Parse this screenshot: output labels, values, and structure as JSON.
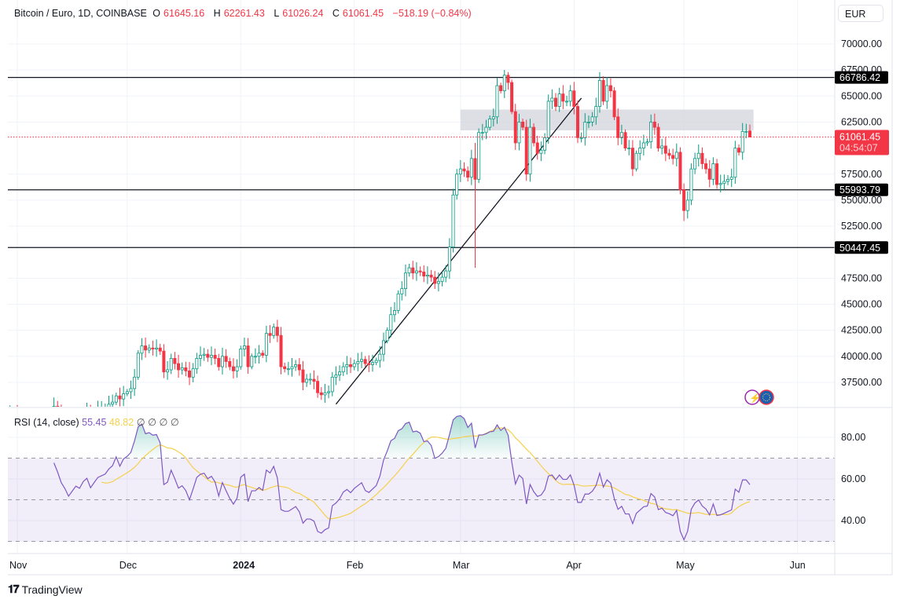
{
  "header": {
    "symbol": "Bitcoin / Euro, 1D, COINBASE",
    "open_label": "O",
    "open": "61645.16",
    "high_label": "H",
    "high": "62261.43",
    "low_label": "L",
    "low": "61026.24",
    "close_label": "C",
    "close": "61061.45",
    "change": "−518.19 (−0.84%)"
  },
  "currency_button": "EUR",
  "rsi_legend": {
    "name": "RSI (14, close)",
    "value": "55.45",
    "ma_value": "48.82",
    "extras": [
      "∅",
      "∅",
      "∅",
      "∅"
    ]
  },
  "price_labels": {
    "last": "61061.45",
    "countdown": "04:54:07"
  },
  "branding": "TradingView",
  "colors": {
    "up": "#089981",
    "down": "#f23645",
    "rsi": "#7e57c2",
    "rsi_ma": "#f5d04c",
    "zone": "#d1d4dc"
  },
  "icons": [
    "lightning-icon",
    "eu-flag-icon"
  ],
  "chart_data": [
    {
      "type": "candlestick",
      "title": "Bitcoin / Euro, 1D, COINBASE",
      "ylim": [
        35400,
        71000
      ],
      "y_ticks": [
        "70000.00",
        "67500.00",
        "65000.00",
        "62500.00",
        "57500.00",
        "55000.00",
        "52500.00",
        "47500.00",
        "45000.00",
        "42500.00",
        "40000.00",
        "37500.00"
      ],
      "x_ticks": [
        {
          "date": "2023-11-01",
          "label": "Nov"
        },
        {
          "date": "2023-12-01",
          "label": "Dec"
        },
        {
          "date": "2024-01-01",
          "label": "2024",
          "bold": true
        },
        {
          "date": "2024-02-01",
          "label": "Feb"
        },
        {
          "date": "2024-03-01",
          "label": "Mar"
        },
        {
          "date": "2024-04-01",
          "label": "Apr"
        },
        {
          "date": "2024-05-01",
          "label": "May"
        },
        {
          "date": "2024-06-01",
          "label": "Jun"
        }
      ],
      "closes_by_month": {
        "2023-10": {
          "first_day": 28,
          "values": [
            33000,
            33500,
            34500,
            34600
          ]
        },
        "2023-11": {
          "first_day": 1,
          "values": [
            33800,
            34200,
            34000,
            33800,
            34100,
            34300,
            34000,
            33500,
            33800,
            34500,
            35200,
            34800,
            34300,
            34000,
            33600,
            33900,
            34200,
            34100,
            34500,
            34700,
            34300,
            34600,
            34900,
            35000,
            35100,
            35400,
            35600,
            36200,
            35900,
            36400
          ]
        },
        "2023-12": {
          "first_day": 1,
          "values": [
            36600,
            36900,
            38000,
            40300,
            41000,
            40600,
            40800,
            40700,
            40800,
            40500,
            38500,
            38700,
            39800,
            39300,
            38700,
            38900,
            38600,
            38000,
            38800,
            39800,
            40100,
            40200,
            39900,
            40100,
            39800,
            39000,
            40000,
            39500,
            39000,
            38600,
            39000
          ]
        },
        "2024-01": {
          "first_day": 1,
          "values": [
            40700,
            41000,
            39000,
            40000,
            40000,
            40300,
            40100,
            42200,
            42000,
            42800,
            42000,
            39000,
            38800,
            38800,
            39000,
            39200,
            38700,
            37500,
            37800,
            37800,
            37600,
            36500,
            36300,
            36500,
            36600,
            38000,
            38200,
            38500,
            39000,
            39200,
            39000
          ]
        },
        "2024-02": {
          "first_day": 1,
          "values": [
            39300,
            39500,
            39700,
            39300,
            39200,
            39400,
            39600,
            40200,
            41500,
            42500,
            44000,
            44400,
            46000,
            46500,
            48000,
            48500,
            48000,
            48200,
            48100,
            47700,
            47800,
            47600,
            47000,
            47200,
            47600,
            48200,
            50500,
            55500,
            57500
          ]
        },
        "2024-03": {
          "first_day": 1,
          "values": [
            58000,
            57800,
            57200,
            59000,
            57000,
            61500,
            61500,
            62000,
            62800,
            63000,
            66000,
            65500,
            67000,
            66300,
            63500,
            60500,
            62500,
            62000,
            57500,
            62000,
            60500,
            59500,
            59800,
            61000,
            64500,
            64800,
            64000,
            65200,
            64500,
            64500,
            65500
          ]
        },
        "2024-04": {
          "first_day": 1,
          "values": [
            64000,
            61000,
            61000,
            62500,
            62500,
            63000,
            64000,
            66500,
            64500,
            66000,
            65500,
            63000,
            61000,
            61500,
            60000,
            60000,
            58000,
            59500,
            60000,
            60500,
            60600,
            62500,
            62000,
            60000,
            60200,
            59500,
            59300,
            59000,
            59600,
            56000
          ]
        },
        "2024-05": {
          "first_day": 1,
          "values": [
            54000,
            55000,
            58000,
            59000,
            59500,
            58500,
            58000,
            57000,
            58500,
            56500,
            56600,
            56800,
            57000,
            57200,
            60000,
            59600,
            61600,
            61600,
            61061.45
          ]
        }
      },
      "wick_overrides": {
        "2024-03-05": {
          "l": 48500,
          "h": 60500
        },
        "2024-03-13": {
          "h": 67500
        },
        "2024-03-14": {
          "h": 67300
        },
        "2024-04-08": {
          "h": 67300
        },
        "2024-05-01": {
          "l": 53000
        },
        "2024-05-19": {
          "o": 61645.16,
          "h": 62261.43,
          "l": 61026.24
        }
      },
      "horizontal_levels": [
        {
          "price": 66786.42,
          "label": "66786.42"
        },
        {
          "price": 55993.79,
          "label": "55993.79"
        },
        {
          "price": 50447.45,
          "label": "50447.45"
        }
      ],
      "last_price": 61061.45,
      "zone": {
        "from_date": "2024-03-01",
        "to_date": "2024-05-20",
        "low": 61700,
        "high": 63700
      },
      "trendline": {
        "from": {
          "date": "2024-01-27",
          "price": 35400
        },
        "to": {
          "date": "2024-04-03",
          "price": 64800
        }
      }
    },
    {
      "type": "line",
      "title": "RSI (14, close)",
      "ylim": [
        27,
        87
      ],
      "y_ticks": [
        "80.00",
        "60.00",
        "40.00"
      ],
      "bands": {
        "upper": 70,
        "middle": 50,
        "lower": 30
      },
      "series": [
        {
          "name": "RSI",
          "period": 14,
          "source": "close"
        },
        {
          "name": "RSI-based MA",
          "period": 14
        }
      ]
    }
  ]
}
